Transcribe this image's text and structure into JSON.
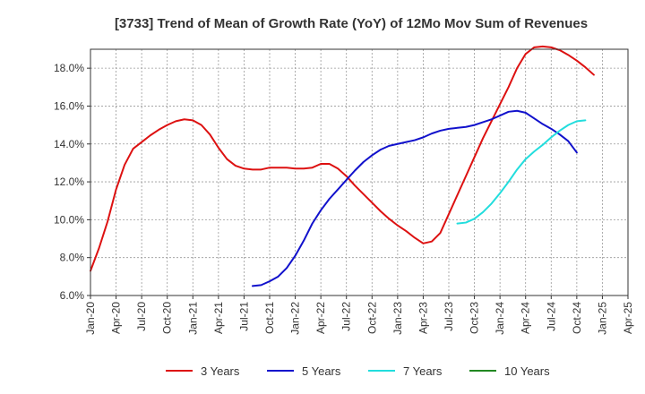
{
  "chart_data": {
    "type": "line",
    "title": "[3733]  Trend of Mean of Growth Rate (YoY) of 12Mo Mov Sum of Revenues",
    "xlabel": "",
    "ylabel": "",
    "ylim": [
      6.0,
      19.0
    ],
    "y_ticks": [
      6.0,
      8.0,
      10.0,
      12.0,
      14.0,
      16.0,
      18.0
    ],
    "y_tick_labels": [
      "6.0%",
      "8.0%",
      "10.0%",
      "12.0%",
      "14.0%",
      "16.0%",
      "18.0%"
    ],
    "x_ticks": [
      "Jan-20",
      "Apr-20",
      "Jul-20",
      "Oct-20",
      "Jan-21",
      "Apr-21",
      "Jul-21",
      "Oct-21",
      "Jan-22",
      "Apr-22",
      "Jul-22",
      "Oct-22",
      "Jan-23",
      "Apr-23",
      "Jul-23",
      "Oct-23",
      "Jan-24",
      "Apr-24",
      "Jul-24",
      "Oct-24",
      "Jan-25",
      "Apr-25"
    ],
    "grid": true,
    "legend_position": "bottom",
    "series": [
      {
        "name": "3 Years",
        "color": "#dd1111",
        "start_index": 0,
        "values": [
          7.3,
          8.5,
          9.9,
          11.6,
          12.9,
          13.75,
          14.1,
          14.45,
          14.75,
          15.0,
          15.2,
          15.3,
          15.25,
          15.0,
          14.5,
          13.8,
          13.2,
          12.85,
          12.7,
          12.65,
          12.65,
          12.75,
          12.75,
          12.75,
          12.7,
          12.7,
          12.75,
          12.95,
          12.95,
          12.7,
          12.3,
          11.8,
          11.35,
          10.9,
          10.45,
          10.05,
          9.7,
          9.4,
          9.05,
          8.75,
          8.85,
          9.3,
          10.3,
          11.3,
          12.3,
          13.3,
          14.3,
          15.2,
          16.1,
          17.0,
          18.0,
          18.75,
          19.1,
          19.15,
          19.1,
          18.95,
          18.7,
          18.4,
          18.05,
          17.65
        ]
      },
      {
        "name": "5 Years",
        "color": "#1111cc",
        "start_index": 19,
        "values": [
          6.5,
          6.55,
          6.75,
          7.0,
          7.45,
          8.1,
          8.9,
          9.8,
          10.5,
          11.1,
          11.6,
          12.1,
          12.6,
          13.05,
          13.4,
          13.7,
          13.9,
          14.0,
          14.1,
          14.2,
          14.35,
          14.55,
          14.7,
          14.8,
          14.85,
          14.9,
          15.0,
          15.15,
          15.3,
          15.5,
          15.7,
          15.75,
          15.65,
          15.35,
          15.05,
          14.8,
          14.5,
          14.15,
          13.55
        ]
      },
      {
        "name": "7 Years",
        "color": "#22dddd",
        "start_index": 43,
        "values": [
          9.8,
          9.85,
          10.05,
          10.4,
          10.85,
          11.4,
          12.0,
          12.65,
          13.2,
          13.6,
          13.95,
          14.35,
          14.7,
          15.0,
          15.2,
          15.25
        ]
      },
      {
        "name": "10 Years",
        "color": "#228822",
        "start_index": 0,
        "values": []
      }
    ]
  }
}
